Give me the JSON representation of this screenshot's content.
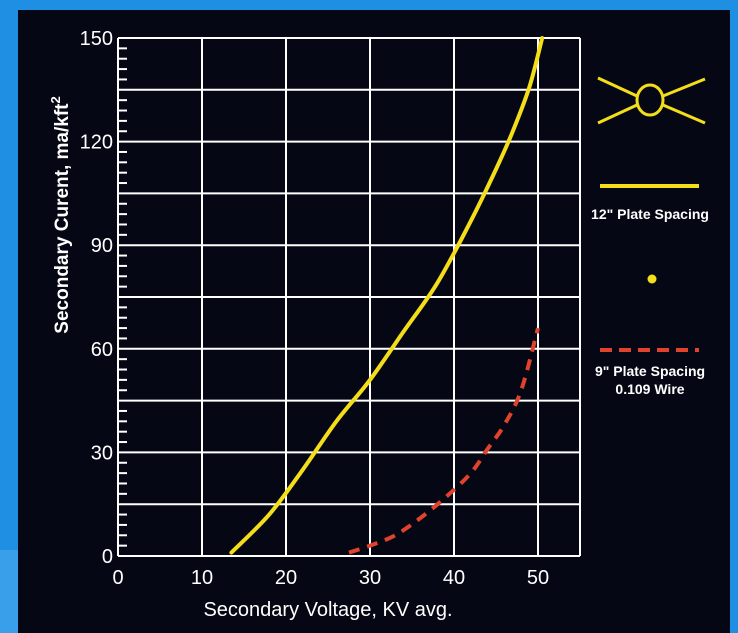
{
  "colors": {
    "background": "#1f8fe3",
    "panel": "#050814",
    "grid": "#ffffff",
    "series_12in": "#f4de1a",
    "series_9in": "#e0432b"
  },
  "legend": {
    "symbol_icon": "wire-between-plates-icon",
    "series_12in_label": "12\" Plate Spacing",
    "series_9in_label_line1": "9\" Plate Spacing",
    "series_9in_label_line2": "0.109 Wire"
  },
  "chart_data": {
    "type": "line",
    "title": "",
    "xlabel": "Secondary Voltage, KV avg.",
    "ylabel": "Secondary Curent, ma/kft",
    "ylabel_superscript": "2",
    "xlim": [
      0,
      55
    ],
    "ylim": [
      0,
      150
    ],
    "xticks": [
      "0",
      "10",
      "20",
      "30",
      "40",
      "50"
    ],
    "yticks": [
      "0",
      "30",
      "60",
      "90",
      "120",
      "150"
    ],
    "grid": true,
    "legend_position": "right",
    "series": [
      {
        "name": "12\" Plate Spacing",
        "style": "solid",
        "color": "#f4de1a",
        "x": [
          13.5,
          18,
          22,
          26,
          30,
          34,
          38,
          42,
          45,
          47,
          49,
          50.5
        ],
        "y": [
          1,
          12,
          25,
          39,
          51,
          65,
          79,
          97,
          112,
          123,
          136,
          150
        ]
      },
      {
        "name": "9\" Plate Spacing",
        "style": "dashed",
        "color": "#e0432b",
        "x": [
          27.5,
          30,
          33,
          36,
          39,
          42,
          44,
          46,
          48,
          50
        ],
        "y": [
          1,
          3,
          6,
          11,
          17,
          24,
          31,
          38,
          48,
          66
        ]
      }
    ]
  }
}
